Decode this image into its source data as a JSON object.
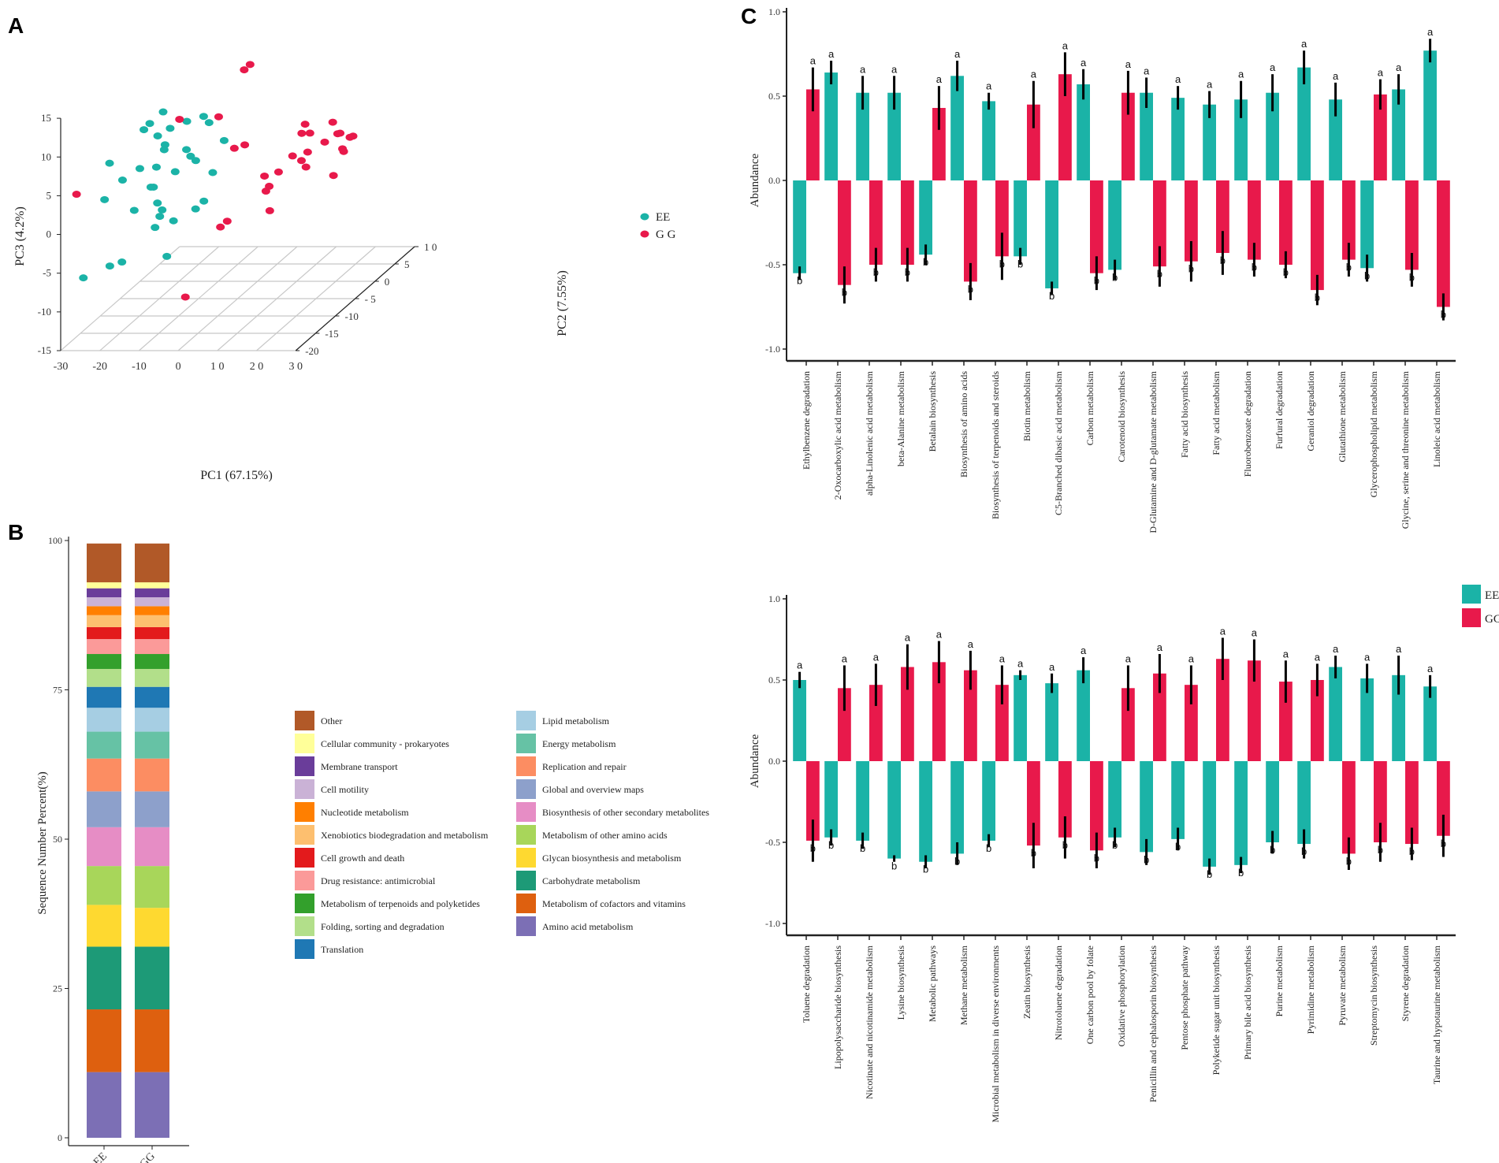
{
  "panel_labels": {
    "a": "A",
    "b": "B",
    "c": "C"
  },
  "colors": {
    "EE": "#1BB3A7",
    "GG": "#E8194B",
    "err": "#000000",
    "grid": "#c8c8c8",
    "axis": "#222222"
  },
  "chart_data": [
    {
      "id": "A",
      "type": "scatter",
      "title": "",
      "xlabel": "PC1   (67.15%)",
      "ylabel": "PC2   (7.55%)",
      "zlabel": "PC3 (4.2%)",
      "xlim": [
        -30,
        30
      ],
      "ylim": [
        -20,
        10
      ],
      "zlim": [
        -15,
        15
      ],
      "x_ticks": [
        "-30",
        "-20",
        "-10",
        "0",
        "1 0",
        "2 0",
        "3 0"
      ],
      "y_ticks": [
        "-20",
        "-15",
        "-10",
        "- 5",
        "0",
        "5",
        "1 0"
      ],
      "z_ticks": [
        "-15",
        "-10",
        "-5",
        "0",
        "5",
        "10",
        "15"
      ],
      "legend": [
        {
          "name": "EE",
          "color": "#1BB3A7"
        },
        {
          "name": "G G",
          "color": "#E8194B"
        }
      ],
      "series": [
        {
          "name": "EE",
          "points": [
            [
              -17,
              -7,
              10
            ],
            [
              -19.3,
              -8.1,
              9
            ],
            [
              -20.8,
              -8.1,
              8.2
            ],
            [
              -15.2,
              -2.9,
              3.3
            ],
            [
              -21.5,
              -12.8,
              3.8
            ],
            [
              -15,
              -3,
              7
            ],
            [
              -19.3,
              -6.1,
              6.5
            ],
            [
              -24.3,
              -13.3,
              6.2
            ],
            [
              -19.3,
              -10.6,
              4.3
            ],
            [
              -17.3,
              -8.4,
              3.5
            ],
            [
              -15.3,
              -8.2,
              6.3
            ],
            [
              -14.5,
              -7.7,
              8.2
            ],
            [
              -11.2,
              -4.5,
              2.6
            ],
            [
              -9.7,
              -1.7,
              -0.2
            ],
            [
              -8,
              -0.5,
              3.4
            ],
            [
              -7.8,
              -4.5,
              7.5
            ],
            [
              -14.7,
              -11.7,
              2.4
            ],
            [
              -17.8,
              -13.5,
              0.2
            ],
            [
              -13.8,
              -11.6,
              0.3
            ],
            [
              -13.6,
              -12.4,
              -2.5
            ],
            [
              -11.2,
              -11.8,
              -6.5
            ],
            [
              -6.8,
              -6.8,
              -1.6
            ],
            [
              -12.3,
              -8.6,
              3
            ],
            [
              -9.7,
              -11.6,
              -2
            ],
            [
              -21.8,
              -15.7,
              -6
            ],
            [
              -17.4,
              -9.7,
              1.5
            ],
            [
              -10.1,
              -3.6,
              7.9
            ],
            [
              -11.3,
              -5.7,
              3.7
            ],
            [
              -12.4,
              -11.8,
              -0.5
            ],
            [
              -18.8,
              -20,
              4.5
            ],
            [
              -23.3,
              -20.9,
              -5.2
            ],
            [
              -12.7,
              -12.1,
              -1.2
            ],
            [
              -17.4,
              -17,
              -4.9
            ],
            [
              -7.3,
              -8.4,
              -1.9
            ],
            [
              -14.3,
              -9.4,
              6.2
            ]
          ]
        },
        {
          "name": "GG",
          "points": [
            [
              -7.8,
              4.5,
              0.6
            ],
            [
              -3,
              1.1,
              12.5
            ],
            [
              -9.1,
              -0.8,
              6.6
            ],
            [
              -4.3,
              0.9,
              11.9
            ],
            [
              -5.4,
              -0.5,
              2.4
            ],
            [
              -5.6,
              -2.1,
              -6.3
            ],
            [
              9,
              2.2,
              -0.4
            ],
            [
              2.7,
              8.5,
              0.3
            ],
            [
              9.4,
              9.7,
              1.2
            ],
            [
              7,
              5.1,
              3
            ],
            [
              3.8,
              8.9,
              -2.3
            ],
            [
              11.8,
              5.3,
              0.6
            ],
            [
              5.7,
              6.6,
              -3.2
            ],
            [
              13.1,
              8.5,
              -1.7
            ],
            [
              14.7,
              5.7,
              1.5
            ],
            [
              12.6,
              9.3,
              -2.4
            ],
            [
              15.7,
              8.6,
              -0.1
            ],
            [
              12.9,
              8.1,
              0.5
            ],
            [
              3.8,
              5.1,
              -1.1
            ],
            [
              5.4,
              7.9,
              0.6
            ],
            [
              5.9,
              -3.7,
              -1.7
            ],
            [
              10.9,
              8.4,
              -5.1
            ],
            [
              14.8,
              8.7,
              -0.3
            ],
            [
              2.5,
              -0.7,
              -1.1
            ],
            [
              -0.5,
              3.6,
              -7.5
            ],
            [
              -4.5,
              -4.9,
              -5.8
            ],
            [
              -30,
              -16,
              3.4
            ],
            [
              -19.7,
              -0.2,
              6
            ],
            [
              -1.2,
              6.5,
              -3.8
            ],
            [
              3.3,
              -0.3,
              -2.6
            ],
            [
              -9.3,
              -9,
              -13
            ]
          ]
        }
      ]
    },
    {
      "id": "B",
      "type": "bar",
      "stacked": true,
      "ylabel": "Sequence   Number   Percent(%)",
      "ylim": [
        0,
        100
      ],
      "y_ticks": [
        "0",
        "25",
        "50",
        "75",
        "100"
      ],
      "categories": [
        "EE",
        "GG"
      ],
      "layers_bottom_to_top": [
        {
          "name": "Amino acid metabolism",
          "color": "#7C6FB5",
          "values": [
            11,
            11
          ]
        },
        {
          "name": "Metabolism  of  cofactors  and  vitamins",
          "color": "#DE600F",
          "values": [
            10.5,
            10.5
          ]
        },
        {
          "name": "Carbohydrate      metabolism",
          "color": "#1D9A77",
          "values": [
            10.5,
            10.5
          ]
        },
        {
          "name": "Glycan  biosynthesis    and    metabolism",
          "color": "#FED930",
          "values": [
            7,
            6.5
          ]
        },
        {
          "name": "Metabolism of other amino acids",
          "color": "#A8D65A",
          "values": [
            6.5,
            7
          ]
        },
        {
          "name": "Biosynthesis  of  other  secondary  metabolites",
          "color": "#E68DC5",
          "values": [
            6.5,
            6.5
          ]
        },
        {
          "name": "Global   and   overview  maps",
          "color": "#8DA0CB",
          "values": [
            6,
            6
          ]
        },
        {
          "name": "Replication and repair",
          "color": "#FC8D62",
          "values": [
            5.5,
            5.5
          ]
        },
        {
          "name": "Energy metabolism",
          "color": "#66C2A5",
          "values": [
            4.5,
            4.5
          ]
        },
        {
          "name": "Lipid  metabolism",
          "color": "#A6CEE3",
          "values": [
            4,
            4
          ]
        },
        {
          "name": "Translation",
          "color": "#1F78B4",
          "values": [
            3.5,
            3.5
          ]
        },
        {
          "name": "Folding,  sorting   and   degradation",
          "color": "#B2DF8A",
          "values": [
            3,
            3
          ]
        },
        {
          "name": "Metabolism  of  terpenoids  and  polyketides",
          "color": "#33A02C",
          "values": [
            2.5,
            2.5
          ]
        },
        {
          "name": "Drug  resistance:  antimicrobial",
          "color": "#FB9A99",
          "values": [
            2.5,
            2.5
          ]
        },
        {
          "name": "Cell  growth  and  death",
          "color": "#E31A1C",
          "values": [
            2,
            2
          ]
        },
        {
          "name": "Xenobiotics biodegradation and metabolism",
          "color": "#FDBF6F",
          "values": [
            2,
            2
          ]
        },
        {
          "name": "Nucleotide    metabolism",
          "color": "#FF7F00",
          "values": [
            1.5,
            1.5
          ]
        },
        {
          "name": "Cell motility",
          "color": "#CAB2D6",
          "values": [
            1.5,
            1.5
          ]
        },
        {
          "name": "Membrane transport",
          "color": "#6A3D9A",
          "values": [
            1.5,
            1.5
          ]
        },
        {
          "name": "Cellular  community  -  prokaryotes",
          "color": "#FFFF99",
          "values": [
            1,
            1
          ]
        },
        {
          "name": "Other",
          "color": "#B15928",
          "values": [
            6.5,
            6.5
          ]
        }
      ],
      "legend_col1": [
        "Other",
        "Cellular  community  -  prokaryotes",
        "Membrane transport",
        "Cell motility",
        "Nucleotide    metabolism",
        "Xenobiotics biodegradation and metabolism",
        "Cell  growth  and  death",
        "Drug  resistance:  antimicrobial",
        "Metabolism  of  terpenoids  and  polyketides",
        "Folding,  sorting   and   degradation",
        "Translation"
      ],
      "legend_col2": [
        "Lipid  metabolism",
        "Energy metabolism",
        "Replication and repair",
        "Global   and   overview  maps",
        "Biosynthesis  of  other  secondary  metabolites",
        "Metabolism of other amino acids",
        "Glycan  biosynthesis    and    metabolism",
        "Carbohydrate      metabolism",
        "Metabolism  of  cofactors  and  vitamins",
        "Amino acid metabolism"
      ]
    },
    {
      "id": "C1",
      "type": "bar",
      "ylabel": "Abundance",
      "ylim": [
        -1.0,
        1.0
      ],
      "y_ticks": [
        "-1.0",
        "-0.5",
        "0.0",
        "0.5",
        "1.0"
      ],
      "categories": [
        "Ethylbenzene degradation",
        "2-Oxocarboxylic acid metabolism",
        "alpha-Linolenic acid metabolism",
        "beta-Alanine metabolism",
        "Betalain biosynthesis",
        "Biosynthesis of amino acids",
        "Biosynthesis of terpenoids and steroids",
        "Biotin metabolism",
        "C5-Branched dibasic acid metabolism",
        "Carbon metabolism",
        "Carotenoid biosynthesis",
        "D-Glutamine and D-glutamate metabolism",
        "Fatty acid biosynthesis",
        "Fatty acid metabolism",
        "Fluorobenzoate degradation",
        "Furfural degradation",
        "Geraniol degradation",
        "Glutathione metabolism",
        "Glycerophospholipid metabolism",
        "Glycine, serine and threonine metabolism",
        "Linoleic acid metabolism"
      ],
      "series": [
        {
          "name": "EE",
          "values": [
            -0.55,
            0.64,
            0.52,
            0.52,
            -0.44,
            0.62,
            0.47,
            -0.45,
            -0.64,
            0.57,
            -0.53,
            0.52,
            0.49,
            0.45,
            0.48,
            0.52,
            0.67,
            0.48,
            -0.52,
            0.54,
            0.77
          ],
          "errors": [
            0.04,
            0.07,
            0.1,
            0.1,
            0.06,
            0.09,
            0.05,
            0.05,
            0.04,
            0.09,
            0.06,
            0.09,
            0.07,
            0.08,
            0.11,
            0.11,
            0.1,
            0.1,
            0.08,
            0.09,
            0.07
          ],
          "labels": [
            "b",
            "a",
            "a",
            "a",
            "b",
            "a",
            "a",
            "b",
            "b",
            "a",
            "b",
            "a",
            "a",
            "a",
            "a",
            "a",
            "a",
            "a",
            "b",
            "a",
            "a"
          ]
        },
        {
          "name": "GG",
          "values": [
            0.54,
            -0.62,
            -0.5,
            -0.5,
            0.43,
            -0.6,
            -0.45,
            0.45,
            0.63,
            -0.55,
            0.52,
            -0.51,
            -0.48,
            -0.43,
            -0.47,
            -0.5,
            -0.65,
            -0.47,
            0.51,
            -0.53,
            -0.75
          ],
          "errors": [
            0.13,
            0.11,
            0.1,
            0.1,
            0.13,
            0.11,
            0.14,
            0.14,
            0.13,
            0.1,
            0.13,
            0.12,
            0.12,
            0.13,
            0.1,
            0.08,
            0.09,
            0.1,
            0.09,
            0.1,
            0.08
          ],
          "labels": [
            "a",
            "b",
            "b",
            "b",
            "a",
            "b",
            "b",
            "a",
            "a",
            "b",
            "a",
            "b",
            "b",
            "b",
            "b",
            "b",
            "b",
            "b",
            "a",
            "b",
            "b"
          ]
        }
      ]
    },
    {
      "id": "C2",
      "type": "bar",
      "ylabel": "Abundance",
      "ylim": [
        -1.0,
        1.0
      ],
      "y_ticks": [
        "-1.0",
        "-0.5",
        "0.0",
        "0.5",
        "1.0"
      ],
      "categories": [
        "Toluene degradation",
        "Lipopolysaccharide biosynthesis",
        "Nicotinate and nicotinamide metabolism",
        "Lysine biosynthesis",
        "Metabolic pathways",
        "Methane metabolism",
        "Microbial metabolism in diverse environments",
        "Zeatin biosynthesis",
        "Nitrotoluene degradation",
        "One carbon pool by folate",
        "Oxidative phosphorylation",
        "Penicillin and cephalosporin biosynthesis",
        "Pentose phosphate pathway",
        "Polyketide sugar unit biosynthesis",
        "Primary bile acid biosynthesis",
        "Purine metabolism",
        "Pyrimidine metabolism",
        "Pyruvate metabolism",
        "Streptomycin biosynthesis",
        "Styrene degradation",
        "Taurine and hypotaurine metabolism"
      ],
      "series": [
        {
          "name": "EE",
          "values": [
            0.5,
            -0.47,
            -0.49,
            -0.6,
            -0.62,
            -0.57,
            -0.49,
            0.53,
            0.48,
            0.56,
            -0.47,
            -0.56,
            -0.48,
            -0.65,
            -0.64,
            -0.5,
            -0.51,
            0.58,
            0.51,
            0.53,
            0.46
          ],
          "errors": [
            0.05,
            0.05,
            0.05,
            0.02,
            0.04,
            0.07,
            0.04,
            0.03,
            0.06,
            0.08,
            0.06,
            0.08,
            0.07,
            0.05,
            0.05,
            0.07,
            0.09,
            0.07,
            0.09,
            0.12,
            0.07
          ],
          "labels": [
            "a",
            "b",
            "b",
            "b",
            "b",
            "b",
            "b",
            "a",
            "a",
            "a",
            "b",
            "b",
            "b",
            "b",
            "b",
            "b",
            "b",
            "a",
            "a",
            "a",
            "a"
          ]
        },
        {
          "name": "GG",
          "values": [
            -0.49,
            0.45,
            0.47,
            0.58,
            0.61,
            0.56,
            0.47,
            -0.52,
            -0.47,
            -0.55,
            0.45,
            0.54,
            0.47,
            0.63,
            0.62,
            0.49,
            0.5,
            -0.57,
            -0.5,
            -0.51,
            -0.46
          ],
          "errors": [
            0.13,
            0.14,
            0.13,
            0.14,
            0.13,
            0.12,
            0.12,
            0.14,
            0.13,
            0.11,
            0.14,
            0.12,
            0.12,
            0.13,
            0.13,
            0.13,
            0.1,
            0.1,
            0.12,
            0.1,
            0.13
          ],
          "labels": [
            "b",
            "a",
            "a",
            "a",
            "a",
            "a",
            "a",
            "b",
            "b",
            "b",
            "a",
            "a",
            "a",
            "a",
            "a",
            "a",
            "a",
            "b",
            "b",
            "b",
            "b"
          ]
        }
      ],
      "legend": [
        {
          "name": "EE",
          "color": "#1BB3A7"
        },
        {
          "name": "GG",
          "color": "#E8194B"
        }
      ]
    }
  ]
}
